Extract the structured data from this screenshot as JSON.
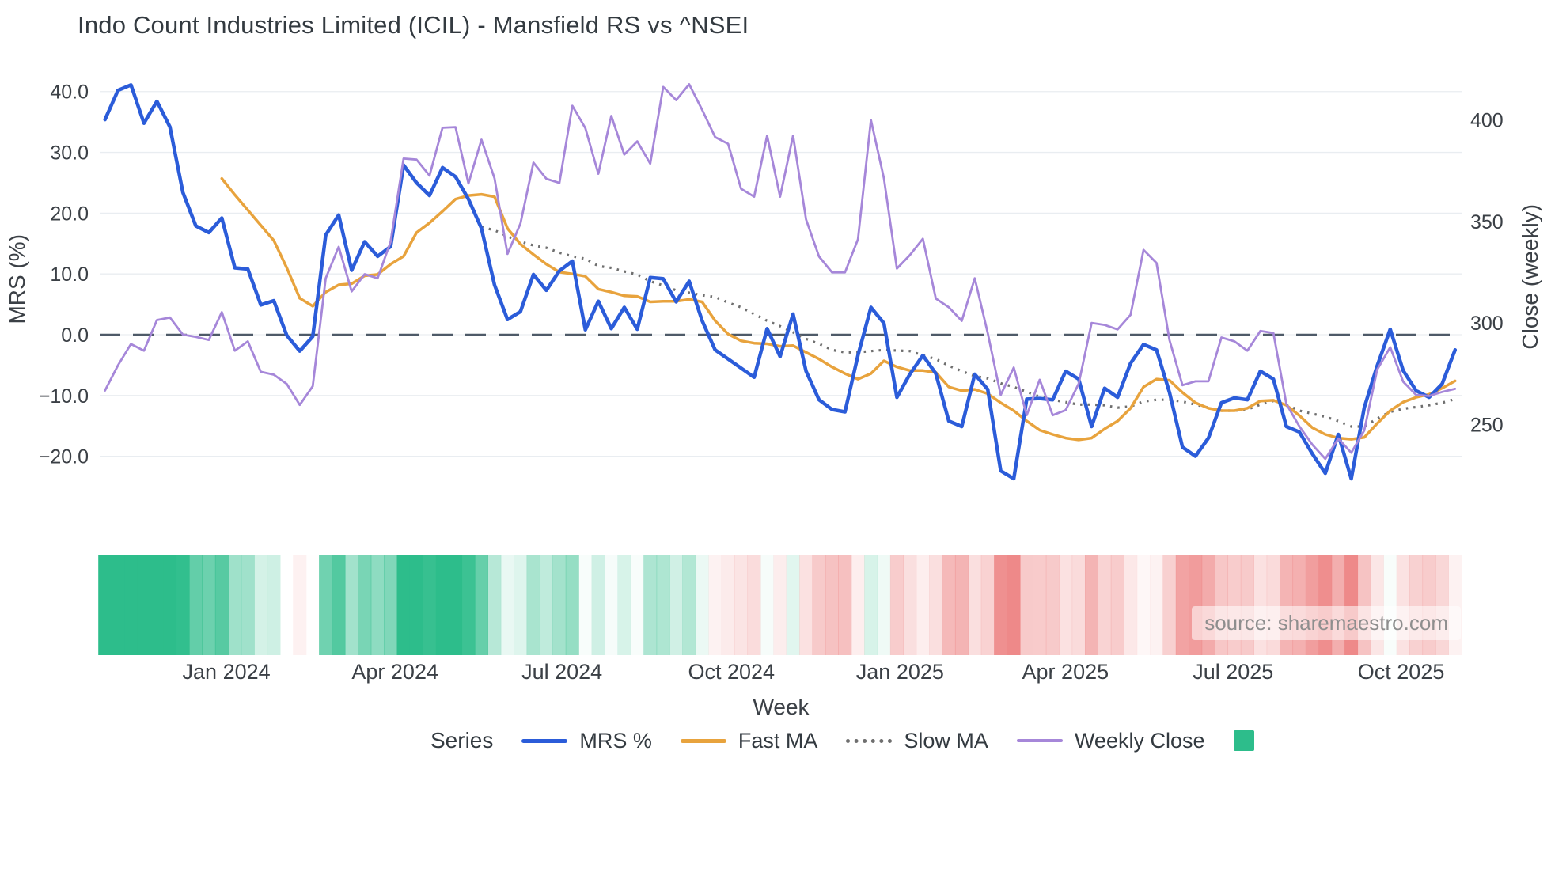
{
  "title": "Indo Count Industries Limited (ICIL) - Mansfield RS vs ^NSEI",
  "source_note": "source: sharemaestro.com",
  "axes": {
    "x_label": "Week",
    "y_left_label": "MRS (%)",
    "y_right_label": "Close (weekly)",
    "y_left_ticks": [
      {
        "v": 40,
        "label": "40.0"
      },
      {
        "v": 30,
        "label": "30.0"
      },
      {
        "v": 20,
        "label": "20.0"
      },
      {
        "v": 10,
        "label": "10.0"
      },
      {
        "v": 0,
        "label": "0.0"
      },
      {
        "v": -10,
        "label": "−10.0"
      },
      {
        "v": -20,
        "label": "−20.0"
      }
    ],
    "y_right_ticks": [
      {
        "v": 400,
        "label": "400"
      },
      {
        "v": 350,
        "label": "350"
      },
      {
        "v": 300,
        "label": "300"
      },
      {
        "v": 250,
        "label": "250"
      }
    ],
    "x_ticks": [
      {
        "week": 9.35,
        "label": "Jan 2024"
      },
      {
        "week": 22.34,
        "label": "Apr 2024"
      },
      {
        "week": 35.2,
        "label": "Jul 2024"
      },
      {
        "week": 48.25,
        "label": "Oct 2024"
      },
      {
        "week": 61.24,
        "label": "Jan 2025"
      },
      {
        "week": 73.98,
        "label": "Apr 2025"
      },
      {
        "week": 86.9,
        "label": "Jul 2025"
      },
      {
        "week": 99.84,
        "label": "Oct 2025"
      }
    ]
  },
  "legend": {
    "title": "Series",
    "items": [
      {
        "label": "MRS %",
        "color": "#2b5cd9",
        "style": "solid"
      },
      {
        "label": "Fast MA",
        "color": "#e8a33d",
        "style": "solid"
      },
      {
        "label": "Slow MA",
        "color": "#6f6f6f",
        "style": "dotted"
      },
      {
        "label": "Weekly Close",
        "color": "#a687d9",
        "style": "solid-thin"
      },
      {
        "label": "",
        "color": "#2dbd8b",
        "style": "square"
      }
    ]
  },
  "chart_data": {
    "type": "line",
    "x_unit": "week_index",
    "n_weeks": 105,
    "y_left_range": [
      -26.3,
      42.7
    ],
    "y_right_range": [
      215.4,
      422.1
    ],
    "grid": "horizontal",
    "zero_line": {
      "value": 0,
      "axis": "left",
      "style": "dashed",
      "color": "#4e5a68"
    },
    "series": [
      {
        "name": "MRS %",
        "axis": "left",
        "color": "#2b5cd9",
        "width": 4.5,
        "dash": "solid",
        "start_week": 0,
        "values": [
          35.4,
          40.2,
          41.1,
          34.8,
          38.4,
          34.2,
          23.4,
          17.9,
          16.8,
          19.2,
          11.0,
          10.8,
          4.9,
          5.6,
          -0.1,
          -2.7,
          -0.3,
          16.4,
          19.7,
          10.6,
          15.3,
          12.9,
          14.5,
          27.9,
          25.0,
          22.9,
          27.5,
          26.0,
          22.3,
          17.5,
          8.2,
          2.5,
          3.8,
          9.9,
          7.3,
          10.5,
          12.1,
          0.8,
          5.5,
          1.0,
          4.5,
          0.9,
          9.4,
          9.2,
          5.4,
          8.8,
          2.3,
          -2.5,
          -4.0,
          -5.5,
          -7.0,
          1.0,
          -3.6,
          3.4,
          -6.0,
          -10.7,
          -12.3,
          -12.7,
          -3.4,
          4.5,
          1.9,
          -10.3,
          -6.5,
          -3.4,
          -6.4,
          -14.2,
          -15.1,
          -6.5,
          -9.0,
          -22.4,
          -23.7,
          -10.6,
          -10.5,
          -10.7,
          -6.0,
          -7.3,
          -15.1,
          -8.8,
          -10.3,
          -4.7,
          -1.6,
          -2.5,
          -9.5,
          -18.5,
          -20.0,
          -17.0,
          -11.2,
          -10.4,
          -10.7,
          -6.0,
          -7.3,
          -15.1,
          -16.0,
          -19.6,
          -22.8,
          -16.4,
          -23.7,
          -12.0,
          -5.1,
          0.9,
          -5.9,
          -9.2,
          -10.3,
          -8.1,
          -2.5
        ]
      },
      {
        "name": "Fast MA",
        "axis": "left",
        "color": "#e8a33d",
        "width": 3.5,
        "dash": "solid",
        "start_week": 9,
        "values": [
          25.7,
          23.0,
          20.5,
          18.0,
          15.5,
          11.0,
          6.0,
          4.7,
          7.0,
          8.2,
          8.4,
          9.7,
          9.9,
          11.6,
          12.9,
          16.8,
          18.4,
          20.3,
          22.3,
          22.9,
          23.1,
          22.7,
          17.5,
          14.9,
          13.2,
          11.6,
          10.3,
          10.0,
          9.6,
          7.5,
          7.0,
          6.4,
          6.3,
          5.4,
          5.5,
          5.5,
          5.8,
          5.4,
          2.3,
          0.1,
          -1.0,
          -1.4,
          -1.5,
          -1.9,
          -1.8,
          -2.9,
          -4.0,
          -5.3,
          -6.4,
          -7.3,
          -6.4,
          -4.3,
          -5.3,
          -5.9,
          -5.9,
          -6.2,
          -8.6,
          -9.2,
          -9.0,
          -9.7,
          -11.2,
          -12.5,
          -14.2,
          -15.7,
          -16.4,
          -17.0,
          -17.3,
          -17.0,
          -15.5,
          -14.2,
          -12.1,
          -8.6,
          -7.3,
          -7.5,
          -9.5,
          -11.2,
          -12.1,
          -12.5,
          -12.5,
          -12.1,
          -10.9,
          -10.8,
          -11.6,
          -13.3,
          -15.3,
          -16.4,
          -17.0,
          -17.2,
          -16.9,
          -14.6,
          -12.5,
          -11.1,
          -10.3,
          -9.8,
          -8.8,
          -7.6
        ]
      },
      {
        "name": "Slow MA",
        "axis": "left",
        "color": "#6f6f6f",
        "width": 3.2,
        "dash": "dot",
        "start_week": 29,
        "values": [
          17.7,
          17.2,
          16.2,
          15.3,
          14.7,
          14.3,
          13.5,
          12.9,
          12.5,
          11.3,
          11.0,
          10.4,
          9.9,
          8.8,
          8.1,
          7.3,
          6.9,
          6.5,
          6.2,
          5.3,
          4.5,
          3.4,
          2.3,
          1.4,
          0.4,
          -0.7,
          -1.5,
          -2.5,
          -2.9,
          -2.9,
          -2.7,
          -2.5,
          -2.6,
          -2.7,
          -3.4,
          -4.0,
          -5.1,
          -6.0,
          -6.8,
          -7.2,
          -8.0,
          -8.6,
          -9.4,
          -10.2,
          -10.7,
          -11.1,
          -11.5,
          -11.5,
          -11.6,
          -12.0,
          -11.8,
          -11.0,
          -10.7,
          -10.7,
          -11.0,
          -11.5,
          -12.0,
          -12.5,
          -12.5,
          -12.3,
          -11.5,
          -10.9,
          -11.5,
          -12.5,
          -13.0,
          -13.5,
          -14.2,
          -15.1,
          -15.1,
          -13.8,
          -12.7,
          -12.2,
          -11.9,
          -11.6,
          -11.2,
          -10.6
        ]
      },
      {
        "name": "Weekly Close",
        "axis": "right",
        "color": "#a687d9",
        "width": 2.8,
        "dash": "solid",
        "start_week": 0,
        "values": [
          266.7,
          279.1,
          289.6,
          286.3,
          301.4,
          302.7,
          294.2,
          293.1,
          291.6,
          305.3,
          286.3,
          290.9,
          275.9,
          274.5,
          269.9,
          259.6,
          268.8,
          322.0,
          337.5,
          315.5,
          324.0,
          322.0,
          340.0,
          381.0,
          380.5,
          372.6,
          396.2,
          396.5,
          368.7,
          390.3,
          371.3,
          334.0,
          349.0,
          379.0,
          371.0,
          369.0,
          407.0,
          396.0,
          373.5,
          402.0,
          383.0,
          389.5,
          378.5,
          416.3,
          409.8,
          417.6,
          405.0,
          391.6,
          388.3,
          366.1,
          362.2,
          392.3,
          362.2,
          392.3,
          351.0,
          332.7,
          324.9,
          324.9,
          341.2,
          400.0,
          371.3,
          326.8,
          333.4,
          341.5,
          312.0,
          307.7,
          301.0,
          322.0,
          295.0,
          264.5,
          278.0,
          254.5,
          272.0,
          254.5,
          257.0,
          270.0,
          300.0,
          299.0,
          296.8,
          304.0,
          336.0,
          329.5,
          291.5,
          269.3,
          271.2,
          271.2,
          292.8,
          290.9,
          286.3,
          296.0,
          295.0,
          260.0,
          249.0,
          240.0,
          233.0,
          243.0,
          236.0,
          247.0,
          277.0,
          288.0,
          271.0,
          264.5,
          264.0,
          266.0,
          267.5
        ]
      }
    ],
    "heatmap": {
      "basis": "MRS %",
      "positive_color": "#2dbd8b",
      "negative_color": "#ee8888",
      "max_abs": 24
    }
  }
}
